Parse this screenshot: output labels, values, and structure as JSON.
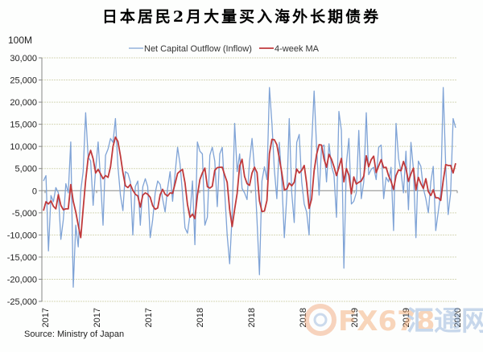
{
  "chart_data": {
    "type": "line",
    "title": "日本居民2月大量买入海外长期债券",
    "ylabel": "100M",
    "source": "Source: Ministry of Japan",
    "ylim": [
      -25000,
      30000
    ],
    "yticks": [
      "30,000",
      "25,000",
      "20,000",
      "15,000",
      "10,000",
      "5,000",
      "0",
      "-5,000",
      "-10,000",
      "-15,000",
      "-20,000",
      "-25,000"
    ],
    "ytick_values": [
      30000,
      25000,
      20000,
      15000,
      10000,
      5000,
      0,
      -5000,
      -10000,
      -15000,
      -20000,
      -25000
    ],
    "xticks": [
      "2017",
      "2017",
      "2017",
      "2018",
      "2018",
      "2018",
      "2019",
      "2019",
      "2020"
    ],
    "grid": true,
    "legend_placement": "top-center",
    "series": [
      {
        "name": "Net Capital  Outflow (Inflow)",
        "color": "#7fa3d6",
        "values": [
          2200,
          3400,
          -13600,
          -1100,
          -2500,
          700,
          -500,
          -11000,
          -6500,
          1600,
          -500,
          11000,
          -21800,
          -7800,
          -12700,
          0,
          4300,
          17600,
          7600,
          6700,
          -3300,
          4900,
          11000,
          2500,
          -7800,
          8000,
          9400,
          11800,
          10900,
          16300,
          5500,
          -1000,
          -4500,
          4300,
          3900,
          2000,
          -10000,
          900,
          2200,
          -7800,
          900,
          2700,
          900,
          -10600,
          -6500,
          -500,
          2200,
          1400,
          -1800,
          -4800,
          500,
          4300,
          -2400,
          3900,
          9800,
          6100,
          -500,
          -8400,
          -9600,
          -5400,
          2200,
          -12200,
          11000,
          8900,
          8300,
          -7800,
          -6000,
          8000,
          9800,
          6700,
          -3600,
          8300,
          9800,
          -500,
          -10000,
          -16500,
          -5400,
          15200,
          4300,
          8300,
          500,
          -500,
          -2000,
          6700,
          11800,
          4800,
          -6800,
          -19000,
          2200,
          5400,
          2500,
          23300,
          15200,
          4800,
          -1800,
          10900,
          2200,
          -10600,
          -1000,
          16300,
          -500,
          -7200,
          10900,
          12700,
          2000,
          -3000,
          -4800,
          -10000,
          10300,
          22500,
          9800,
          -1000,
          9800,
          10300,
          2000,
          10600,
          5500,
          3600,
          -6000,
          17900,
          13600,
          -17500,
          6100,
          11800,
          -3000,
          -2400,
          -500,
          13600,
          -1800,
          2000,
          17600,
          3600,
          4800,
          5300,
          2500,
          9800,
          10300,
          -1800,
          3000,
          2000,
          5300,
          -9000,
          15200,
          7300,
          4300,
          -500,
          8900,
          -4300,
          10900,
          4800,
          -10600,
          6700,
          5500,
          500,
          -1800,
          -5000,
          2000,
          5500,
          -9000,
          -4800,
          -500,
          23300,
          5500,
          -5400,
          -500,
          16300,
          14200
        ]
      },
      {
        "name": "4-week MA",
        "color": "#c0393b",
        "values": [
          -4500,
          -2500,
          -3000,
          -2300,
          -3500,
          -4100,
          -900,
          -3300,
          -4300,
          -4100,
          -4100,
          1400,
          -2400,
          -4800,
          -7800,
          -10600,
          -4100,
          2300,
          7400,
          9100,
          7200,
          4000,
          4800,
          3800,
          2700,
          3400,
          3000,
          5400,
          10000,
          12100,
          11100,
          7900,
          4100,
          1100,
          700,
          1400,
          100,
          -800,
          -1200,
          -3700,
          -1000,
          -500,
          -800,
          -1500,
          -3400,
          -4200,
          -3900,
          -900,
          300,
          -800,
          -1200,
          -500,
          -600,
          1600,
          3900,
          4400,
          4800,
          1800,
          -3100,
          -6000,
          -5300,
          -6300,
          -1100,
          2500,
          4000,
          5100,
          900,
          600,
          1000,
          4600,
          5200,
          5300,
          5300,
          3500,
          1900,
          -4300,
          -8100,
          -4200,
          -600,
          5600,
          7100,
          3200,
          1600,
          1200,
          4000,
          5300,
          4100,
          -2300,
          -4700,
          -4600,
          -2200,
          8400,
          11600,
          11500,
          10400,
          7300,
          4000,
          200,
          400,
          1700,
          1100,
          1900,
          4900,
          4000,
          4600,
          5700,
          1700,
          -4000,
          -1900,
          4500,
          8200,
          10400,
          10300,
          7200,
          5300,
          8200,
          7100,
          5400,
          3400,
          5300,
          7300,
          2000,
          5000,
          3500,
          -700,
          3100,
          1500,
          1900,
          2200,
          3300,
          7900,
          5400,
          7000,
          7800,
          4100,
          5600,
          7000,
          5200,
          5300,
          3400,
          2100,
          300,
          3400,
          4700,
          4500,
          6600,
          5000,
          2100,
          3800,
          5100,
          200,
          3000,
          1600,
          500,
          2700,
          -200,
          -1100,
          200,
          -1600,
          -1600,
          -2200,
          2300,
          5900,
          5700,
          5700,
          4000,
          6200
        ]
      }
    ]
  },
  "watermark": "FX678汇通网"
}
